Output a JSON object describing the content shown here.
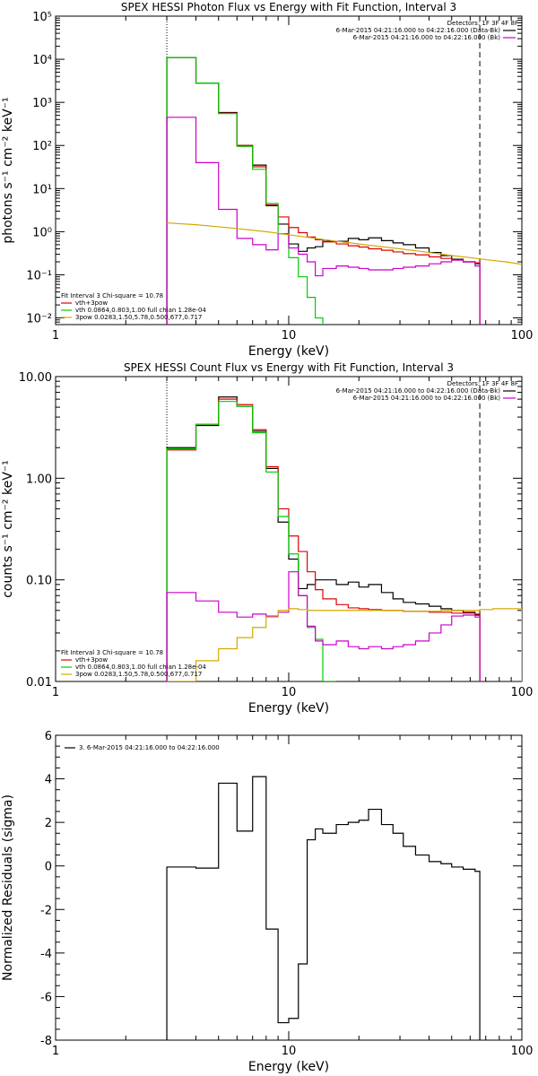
{
  "chart_data": [
    {
      "type": "line",
      "title": "SPEX HESSI Photon Flux vs Energy with Fit Function, Interval 3",
      "xlabel": "Energy (keV)",
      "ylabel": "photons s⁻¹ cm⁻² keV⁻¹",
      "xscale": "log",
      "yscale": "log",
      "xlim": [
        1,
        100
      ],
      "ylim": [
        0.007,
        100000
      ],
      "xticks": [
        {
          "v": 1,
          "label": "1"
        },
        {
          "v": 10,
          "label": "10"
        },
        {
          "v": 100,
          "label": "100"
        }
      ],
      "yticks": [
        {
          "v": 0.01,
          "label": "10⁻²"
        },
        {
          "v": 0.1,
          "label": "10⁻¹"
        },
        {
          "v": 1,
          "label": "10⁰"
        },
        {
          "v": 10,
          "label": "10¹"
        },
        {
          "v": 100,
          "label": "10²"
        },
        {
          "v": 1000,
          "label": "10³"
        },
        {
          "v": 10000,
          "label": "10⁴"
        },
        {
          "v": 100000,
          "label": "10⁵"
        }
      ],
      "vlines": [
        {
          "x": 3,
          "style": "dotted"
        },
        {
          "x": 66,
          "style": "dashed"
        }
      ],
      "legend_tr": [
        {
          "text": "Detectors: 1F 3F 4F 8F",
          "color": null
        },
        {
          "text": "6-Mar-2015 04:21:16.000 to 04:22:16.000 (Data-Bk)",
          "color": "#000000"
        },
        {
          "text": "6-Mar-2015 04:21:16.000 to 04:22:16.000 (Bk)",
          "color": "#cc00cc"
        }
      ],
      "legend_bl": [
        {
          "text": "Fit Interval 3   Chi-square = 10.78",
          "color": null
        },
        {
          "text": "vth+3pow",
          "color": "#e00000"
        },
        {
          "text": "vth 0.0864,0.803,1.00  full chian 1.28e-04",
          "color": "#00cc00"
        },
        {
          "text": "3pow 0.0283,1.50,5.78,0.500,677,0.717",
          "color": "#d4a800"
        }
      ],
      "series": [
        {
          "color": "#000000",
          "edges": [
            3,
            4,
            5,
            6,
            7,
            8,
            9,
            10,
            11,
            12,
            13,
            14,
            16,
            18,
            20,
            22,
            25,
            28,
            31,
            35,
            40,
            45,
            50,
            56,
            63,
            66
          ],
          "values": [
            11000,
            2800,
            580,
            100,
            35,
            4,
            1.5,
            0.52,
            0.35,
            0.42,
            0.45,
            0.6,
            0.6,
            0.7,
            0.65,
            0.72,
            0.62,
            0.55,
            0.5,
            0.42,
            0.33,
            0.28,
            0.23,
            0.2,
            0.18
          ]
        },
        {
          "color": "#e00000",
          "edges": [
            3,
            4,
            5,
            6,
            7,
            8,
            9,
            10,
            11,
            12,
            13,
            14,
            16,
            18,
            20,
            22,
            25,
            28,
            31,
            35,
            40,
            45,
            50,
            56,
            63,
            66
          ],
          "values": [
            11000,
            2800,
            560,
            100,
            32,
            4.2,
            2.2,
            1.25,
            0.95,
            0.75,
            0.65,
            0.58,
            0.52,
            0.47,
            0.44,
            0.4,
            0.37,
            0.34,
            0.31,
            0.29,
            0.26,
            0.24,
            0.22,
            0.2,
            0.19
          ]
        },
        {
          "color": "#00cc00",
          "edges": [
            3,
            4,
            5,
            6,
            7,
            8,
            9,
            10,
            11,
            12,
            13,
            14
          ],
          "values": [
            11000,
            2800,
            550,
            95,
            28,
            4.5,
            0.9,
            0.25,
            0.09,
            0.03,
            0.01
          ]
        },
        {
          "color": "#cc00cc",
          "edges": [
            3,
            4,
            5,
            6,
            7,
            8,
            9,
            10,
            11,
            12,
            13,
            14,
            16,
            18,
            20,
            22,
            25,
            28,
            31,
            35,
            40,
            45,
            50,
            56,
            63,
            66
          ],
          "values": [
            450,
            40,
            3.3,
            0.7,
            0.5,
            0.38,
            0.9,
            0.42,
            0.3,
            0.2,
            0.095,
            0.14,
            0.16,
            0.15,
            0.14,
            0.13,
            0.13,
            0.14,
            0.15,
            0.16,
            0.18,
            0.2,
            0.22,
            0.2,
            0.16
          ]
        },
        {
          "color": "#d4a800",
          "points": [
            [
              3,
              1.6
            ],
            [
              4,
              1.45
            ],
            [
              5,
              1.3
            ],
            [
              6,
              1.18
            ],
            [
              8,
              1.0
            ],
            [
              10,
              0.85
            ],
            [
              13,
              0.7
            ],
            [
              16,
              0.6
            ],
            [
              20,
              0.52
            ],
            [
              30,
              0.4
            ],
            [
              40,
              0.33
            ],
            [
              50,
              0.28
            ],
            [
              60,
              0.25
            ],
            [
              70,
              0.225
            ],
            [
              85,
              0.2
            ],
            [
              100,
              0.175
            ]
          ]
        }
      ]
    },
    {
      "type": "line",
      "title": "SPEX HESSI Count Flux vs Energy with Fit Function, Interval 3",
      "xlabel": "Energy (keV)",
      "ylabel": "counts s⁻¹ cm⁻² keV⁻¹",
      "xscale": "log",
      "yscale": "log",
      "xlim": [
        1,
        100
      ],
      "ylim": [
        0.01,
        10
      ],
      "xticks": [
        {
          "v": 1,
          "label": "1"
        },
        {
          "v": 10,
          "label": "10"
        },
        {
          "v": 100,
          "label": "100"
        }
      ],
      "yticks": [
        {
          "v": 0.01,
          "label": "0.01"
        },
        {
          "v": 0.1,
          "label": "0.10"
        },
        {
          "v": 1,
          "label": "1.00"
        },
        {
          "v": 10,
          "label": "10.00"
        }
      ],
      "vlines": [
        {
          "x": 3,
          "style": "dotted"
        },
        {
          "x": 66,
          "style": "dashed"
        }
      ],
      "legend_tr": [
        {
          "text": "Detectors: 1F 3F 4F 8F",
          "color": null
        },
        {
          "text": "6-Mar-2015 04:21:16.000 to 04:22:16.000 (Data-Bk)",
          "color": "#000000"
        },
        {
          "text": "6-Mar-2015 04:21:16.000 to 04:22:16.000 (Bk)",
          "color": "#cc00cc"
        }
      ],
      "legend_bl": [
        {
          "text": "Fit Interval 3   Chi-square = 10.78",
          "color": null
        },
        {
          "text": "vth+3pow",
          "color": "#e00000"
        },
        {
          "text": "vth 0.0864,0.803,1.00  full chian 1.28e-04",
          "color": "#00cc00"
        },
        {
          "text": "3pow 0.0283,1.50,5.78,0.500,677,0.717",
          "color": "#d4a800"
        }
      ],
      "series": [
        {
          "color": "#000000",
          "edges": [
            3,
            4,
            5,
            6,
            7,
            8,
            9,
            10,
            11,
            12,
            13,
            14,
            16,
            18,
            20,
            22,
            25,
            28,
            31,
            35,
            40,
            45,
            50,
            56,
            63,
            66
          ],
          "values": [
            2.0,
            3.3,
            6.3,
            5.1,
            2.9,
            1.25,
            0.37,
            0.16,
            0.082,
            0.09,
            0.1,
            0.1,
            0.09,
            0.095,
            0.085,
            0.09,
            0.075,
            0.065,
            0.06,
            0.058,
            0.055,
            0.052,
            0.05,
            0.048,
            0.045
          ]
        },
        {
          "color": "#e00000",
          "edges": [
            3,
            4,
            5,
            6,
            7,
            8,
            9,
            10,
            11,
            12,
            13,
            14,
            16,
            18,
            20,
            22,
            25,
            28,
            31,
            35,
            40,
            45,
            50,
            56,
            63,
            66
          ],
          "values": [
            1.9,
            3.4,
            6.0,
            5.3,
            3.0,
            1.3,
            0.5,
            0.27,
            0.19,
            0.12,
            0.08,
            0.065,
            0.057,
            0.053,
            0.052,
            0.051,
            0.05,
            0.05,
            0.049,
            0.049,
            0.048,
            0.048,
            0.047,
            0.047,
            0.046
          ]
        },
        {
          "color": "#00cc00",
          "edges": [
            3,
            4,
            5,
            6,
            7,
            8,
            9,
            10,
            11,
            12,
            13,
            14,
            16
          ],
          "values": [
            1.95,
            3.4,
            5.7,
            5.1,
            2.8,
            1.15,
            0.42,
            0.18,
            0.07,
            0.034,
            0.026,
            0.01
          ]
        },
        {
          "color": "#cc00cc",
          "edges": [
            3,
            4,
            5,
            6,
            7,
            8,
            9,
            10,
            11,
            12,
            13,
            14,
            16,
            18,
            20,
            22,
            25,
            28,
            31,
            35,
            40,
            45,
            50,
            56,
            63,
            66
          ],
          "values": [
            0.075,
            0.062,
            0.048,
            0.043,
            0.046,
            0.044,
            0.048,
            0.12,
            0.07,
            0.035,
            0.025,
            0.023,
            0.025,
            0.022,
            0.021,
            0.022,
            0.021,
            0.022,
            0.023,
            0.025,
            0.03,
            0.036,
            0.044,
            0.045,
            0.043
          ]
        },
        {
          "color": "#d4a800",
          "edges": [
            3,
            4,
            5,
            6,
            7,
            8,
            9,
            10,
            11,
            12,
            13,
            14,
            16,
            18,
            20,
            22,
            25,
            28,
            31,
            35,
            40,
            45,
            50,
            56,
            63,
            66,
            75,
            85,
            100
          ],
          "values": [
            0.01,
            0.016,
            0.021,
            0.027,
            0.034,
            0.043,
            0.05,
            0.052,
            0.051,
            0.05,
            0.05,
            0.05,
            0.05,
            0.05,
            0.05,
            0.05,
            0.05,
            0.05,
            0.049,
            0.049,
            0.049,
            0.05,
            0.05,
            0.05,
            0.05,
            0.051,
            0.052,
            0.052
          ]
        }
      ]
    },
    {
      "type": "line",
      "title": "",
      "xlabel": "Energy (keV)",
      "ylabel": "Normalized Residuals (sigma)",
      "xscale": "log",
      "yscale": "linear",
      "xlim": [
        1,
        100
      ],
      "ylim": [
        -8,
        6
      ],
      "xticks": [
        {
          "v": 1,
          "label": "1"
        },
        {
          "v": 10,
          "label": "10"
        },
        {
          "v": 100,
          "label": "100"
        }
      ],
      "yticks": [
        {
          "v": -8,
          "label": "-8"
        },
        {
          "v": -6,
          "label": "-6"
        },
        {
          "v": -4,
          "label": "-4"
        },
        {
          "v": -2,
          "label": "-2"
        },
        {
          "v": 0,
          "label": "0"
        },
        {
          "v": 2,
          "label": "2"
        },
        {
          "v": 4,
          "label": "4"
        },
        {
          "v": 6,
          "label": "6"
        }
      ],
      "vlines": [],
      "legend_tl": [
        {
          "text": "3.  6-Mar-2015 04:21:16.000 to 04:22:16.000",
          "color": "#000000"
        }
      ],
      "series": [
        {
          "color": "#000000",
          "baseline": -8,
          "edges": [
            3,
            4,
            5,
            6,
            7,
            8,
            9,
            10,
            11,
            12,
            13,
            14,
            16,
            18,
            20,
            22,
            25,
            28,
            31,
            35,
            40,
            45,
            50,
            56,
            63,
            66
          ],
          "values": [
            -0.05,
            -0.1,
            3.8,
            1.6,
            4.1,
            -2.9,
            -7.2,
            -7.0,
            -4.5,
            1.2,
            1.7,
            1.5,
            1.9,
            2.0,
            2.1,
            2.6,
            1.9,
            1.5,
            0.9,
            0.5,
            0.2,
            0.1,
            -0.05,
            -0.15,
            -0.25
          ]
        }
      ]
    }
  ]
}
